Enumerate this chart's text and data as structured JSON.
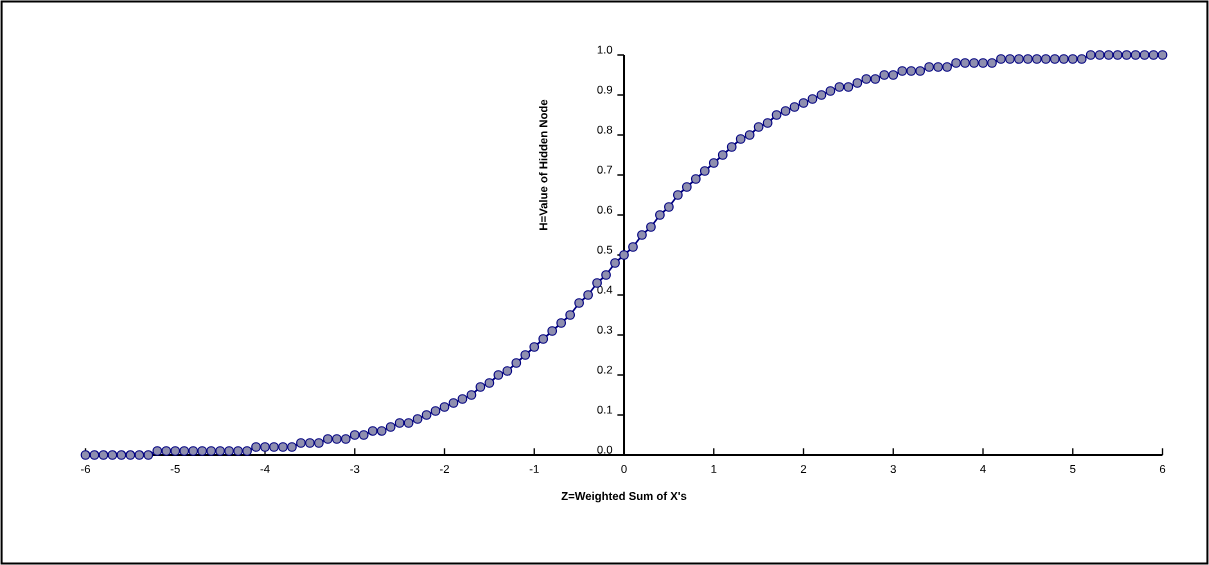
{
  "chart_data": {
    "type": "line",
    "xlabel": "Z=Weighted Sum of X's",
    "ylabel": "H=Value of Hidden Node",
    "x": [
      -6.0,
      -5.9,
      -5.8,
      -5.7,
      -5.6,
      -5.5,
      -5.4,
      -5.3,
      -5.2,
      -5.1,
      -5.0,
      -4.9,
      -4.8,
      -4.7,
      -4.6,
      -4.5,
      -4.4,
      -4.3,
      -4.2,
      -4.1,
      -4.0,
      -3.9,
      -3.8,
      -3.7,
      -3.6,
      -3.5,
      -3.4,
      -3.3,
      -3.2,
      -3.1,
      -3.0,
      -2.9,
      -2.8,
      -2.7,
      -2.6,
      -2.5,
      -2.4,
      -2.3,
      -2.2,
      -2.1,
      -2.0,
      -1.9,
      -1.8,
      -1.7,
      -1.6,
      -1.5,
      -1.4,
      -1.3,
      -1.2,
      -1.1,
      -1.0,
      -0.9,
      -0.8,
      -0.7,
      -0.6,
      -0.5,
      -0.4,
      -0.3,
      -0.2,
      -0.1,
      0.0,
      0.1,
      0.2,
      0.3,
      0.4,
      0.5,
      0.6,
      0.7,
      0.8,
      0.9,
      1.0,
      1.1,
      1.2,
      1.3,
      1.4,
      1.5,
      1.6,
      1.7,
      1.8,
      1.9,
      2.0,
      2.1,
      2.2,
      2.3,
      2.4,
      2.5,
      2.6,
      2.7,
      2.8,
      2.9,
      3.0,
      3.1,
      3.2,
      3.3,
      3.4,
      3.5,
      3.6,
      3.7,
      3.8,
      3.9,
      4.0,
      4.1,
      4.2,
      4.3,
      4.4,
      4.5,
      4.6,
      4.7,
      4.8,
      4.9,
      5.0,
      5.1,
      5.2,
      5.3,
      5.4,
      5.5,
      5.6,
      5.7,
      5.8,
      5.9,
      6.0
    ],
    "series": [
      {
        "color": "#000080",
        "values": [
          0.0,
          0.0,
          0.0,
          0.0,
          0.0,
          0.0,
          0.0,
          0.0,
          0.01,
          0.01,
          0.01,
          0.01,
          0.01,
          0.01,
          0.01,
          0.01,
          0.01,
          0.01,
          0.01,
          0.02,
          0.02,
          0.02,
          0.02,
          0.02,
          0.03,
          0.03,
          0.03,
          0.04,
          0.04,
          0.04,
          0.05,
          0.05,
          0.06,
          0.06,
          0.07,
          0.08,
          0.08,
          0.09,
          0.1,
          0.11,
          0.12,
          0.13,
          0.14,
          0.15,
          0.17,
          0.18,
          0.2,
          0.21,
          0.23,
          0.25,
          0.27,
          0.29,
          0.31,
          0.33,
          0.35,
          0.38,
          0.4,
          0.43,
          0.45,
          0.48,
          0.5,
          0.52,
          0.55,
          0.57,
          0.6,
          0.62,
          0.65,
          0.67,
          0.69,
          0.71,
          0.73,
          0.75,
          0.77,
          0.79,
          0.8,
          0.82,
          0.83,
          0.85,
          0.86,
          0.87,
          0.88,
          0.89,
          0.9,
          0.91,
          0.92,
          0.92,
          0.93,
          0.94,
          0.94,
          0.95,
          0.95,
          0.96,
          0.96,
          0.96,
          0.97,
          0.97,
          0.97,
          0.98,
          0.98,
          0.98,
          0.98,
          0.98,
          0.99,
          0.99,
          0.99,
          0.99,
          0.99,
          0.99,
          0.99,
          0.99,
          0.99,
          0.99,
          1.0,
          1.0,
          1.0,
          1.0,
          1.0,
          1.0,
          1.0,
          1.0,
          1.0
        ]
      }
    ],
    "xlim": [
      -6,
      6
    ],
    "ylim": [
      0,
      1
    ],
    "xticks": [
      -6,
      -5,
      -4,
      -3,
      -2,
      -1,
      0,
      1,
      2,
      3,
      4,
      5,
      6
    ],
    "yticks": [
      {
        "value": 0,
        "label": "0.0"
      },
      {
        "value": 0.1,
        "label": "0.1"
      },
      {
        "value": 0.2,
        "label": "0.2"
      },
      {
        "value": 0.3,
        "label": "0.3"
      },
      {
        "value": 0.4,
        "label": "0.4"
      },
      {
        "value": 0.5,
        "label": "0.5"
      },
      {
        "value": 0.6,
        "label": "0.6"
      },
      {
        "value": 0.7,
        "label": "0.7"
      },
      {
        "value": 0.8,
        "label": "0.8"
      },
      {
        "value": 0.9,
        "label": "0.9"
      },
      {
        "value": 1,
        "label": "1.0"
      }
    ],
    "grid": false,
    "marker": "circle",
    "line_style": "solid"
  }
}
